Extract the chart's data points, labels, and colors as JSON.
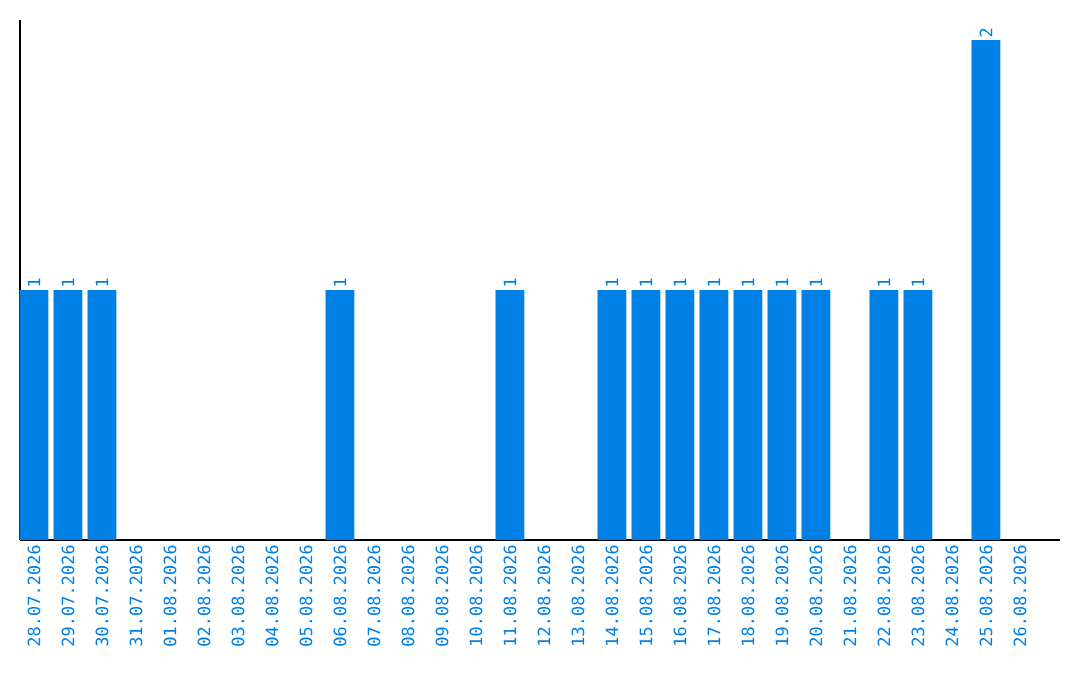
{
  "chart_data": {
    "type": "bar",
    "categories": [
      "28.07.2026",
      "29.07.2026",
      "30.07.2026",
      "31.07.2026",
      "01.08.2026",
      "02.08.2026",
      "03.08.2026",
      "04.08.2026",
      "05.08.2026",
      "06.08.2026",
      "07.08.2026",
      "08.08.2026",
      "09.08.2026",
      "10.08.2026",
      "11.08.2026",
      "12.08.2026",
      "13.08.2026",
      "14.08.2026",
      "15.08.2026",
      "16.08.2026",
      "17.08.2026",
      "18.08.2026",
      "19.08.2026",
      "20.08.2026",
      "21.08.2026",
      "22.08.2026",
      "23.08.2026",
      "24.08.2026",
      "25.08.2026",
      "26.08.2026"
    ],
    "values": [
      1,
      1,
      1,
      0,
      0,
      0,
      0,
      0,
      0,
      1,
      0,
      0,
      0,
      0,
      1,
      0,
      0,
      1,
      1,
      1,
      1,
      1,
      1,
      1,
      0,
      1,
      1,
      0,
      2,
      0
    ],
    "value_labels": [
      "1",
      "1",
      "1",
      null,
      null,
      null,
      null,
      null,
      null,
      "1",
      null,
      null,
      null,
      null,
      "1",
      null,
      null,
      "1",
      "1",
      "1",
      "1",
      "1",
      "1",
      "1",
      null,
      "1",
      "1",
      null,
      "2",
      null
    ],
    "color": "#0080e4",
    "ylim": [
      0,
      2.08
    ],
    "tick_labels": "x"
  }
}
